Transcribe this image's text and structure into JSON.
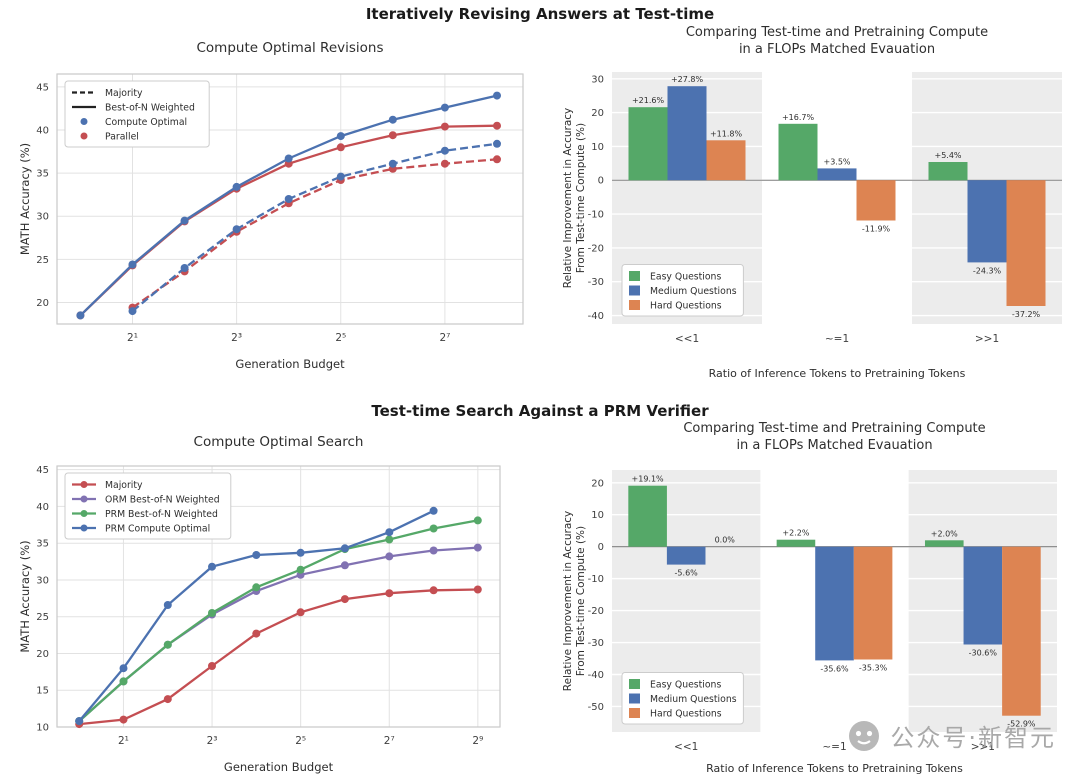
{
  "figure": {
    "suptitle_top": "Iteratively Revising Answers at Test-time",
    "suptitle_bottom": "Test-time Search Against a PRM Verifier"
  },
  "watermark": {
    "text": "公众号·新智元"
  },
  "colors": {
    "blue": "#4C72B0",
    "green": "#55A868",
    "red": "#C44E52",
    "orange": "#DD8452",
    "purple": "#8172B2",
    "black": "#222222"
  },
  "chart_data": [
    {
      "type": "line",
      "title": "Compute Optimal Revisions",
      "xlabel": "Generation Budget",
      "ylabel": "MATH Accuracy (%)",
      "x_scale": "log2",
      "xlim_log2": [
        -0.45,
        8.5
      ],
      "ylim": [
        17.5,
        46.5
      ],
      "y_ticks": [
        20,
        25,
        30,
        35,
        40,
        45
      ],
      "x_ticks": [
        2,
        8,
        32,
        128
      ],
      "x_tick_labels": [
        "2¹",
        "2³",
        "2⁵",
        "2⁷"
      ],
      "grid": true,
      "legend_position": "upper-left",
      "legend": [
        {
          "label": "Majority",
          "color": "black",
          "style": "dash"
        },
        {
          "label": "Best-of-N Weighted",
          "color": "black",
          "style": "line"
        },
        {
          "label": "Compute Optimal",
          "color": "blue",
          "style": "dot"
        },
        {
          "label": "Parallel",
          "color": "red",
          "style": "dot"
        }
      ],
      "series": [
        {
          "name": "Parallel Best-of-N Weighted",
          "color": "red",
          "dash": false,
          "x": [
            1,
            2,
            4,
            8,
            16,
            32,
            64,
            128,
            256
          ],
          "y": [
            18.5,
            24.3,
            29.4,
            33.2,
            36.1,
            38.0,
            39.4,
            40.4,
            40.5
          ]
        },
        {
          "name": "Compute Optimal Best-of-N Weighted",
          "color": "blue",
          "dash": false,
          "x": [
            1,
            2,
            4,
            8,
            16,
            32,
            64,
            128,
            256
          ],
          "y": [
            18.5,
            24.4,
            29.5,
            33.4,
            36.7,
            39.3,
            41.2,
            42.6,
            44.0
          ]
        },
        {
          "name": "Parallel Majority",
          "color": "red",
          "dash": true,
          "x": [
            2,
            4,
            8,
            16,
            32,
            64,
            128,
            256
          ],
          "y": [
            19.4,
            23.6,
            28.2,
            31.5,
            34.2,
            35.5,
            36.1,
            36.6
          ]
        },
        {
          "name": "Compute Optimal Majority",
          "color": "blue",
          "dash": true,
          "x": [
            2,
            4,
            8,
            16,
            32,
            64,
            128,
            256
          ],
          "y": [
            19.0,
            24.0,
            28.5,
            32.0,
            34.6,
            36.1,
            37.6,
            38.4
          ]
        }
      ]
    },
    {
      "type": "bar",
      "title": [
        "Comparing Test-time and Pretraining Compute",
        "in a FLOPs Matched Evauation"
      ],
      "xlabel": "Ratio of Inference Tokens to Pretraining Tokens",
      "ylabel": [
        "Relative Improvement in Accuracy",
        "From Test-time Compute (%)"
      ],
      "categories": [
        "<<1",
        "~=1",
        ">>1"
      ],
      "ylim": [
        -42.5,
        32
      ],
      "y_ticks": [
        30,
        20,
        10,
        0,
        -10,
        -20,
        -30,
        -40
      ],
      "band_color": "#ececec",
      "legend_position": "lower-left",
      "series": [
        {
          "name": "Easy Questions",
          "color": "green",
          "values": [
            21.6,
            16.7,
            5.4
          ]
        },
        {
          "name": "Medium Questions",
          "color": "blue",
          "values": [
            27.8,
            3.5,
            -24.3
          ]
        },
        {
          "name": "Hard Questions",
          "color": "orange",
          "values": [
            11.8,
            -11.9,
            -37.2
          ]
        }
      ]
    },
    {
      "type": "line",
      "title": "Compute Optimal Search",
      "xlabel": "Generation Budget",
      "ylabel": "MATH Accuracy (%)",
      "x_scale": "log2",
      "xlim_log2": [
        -0.5,
        9.5
      ],
      "ylim": [
        10,
        45.5
      ],
      "y_ticks": [
        10,
        15,
        20,
        25,
        30,
        35,
        40,
        45
      ],
      "x_ticks": [
        2,
        8,
        32,
        128,
        512
      ],
      "x_tick_labels": [
        "2¹",
        "2³",
        "2⁵",
        "2⁷",
        "2⁹"
      ],
      "grid": true,
      "legend_position": "upper-left",
      "legend": [
        {
          "label": "Majority",
          "color": "red",
          "style": "line-dot"
        },
        {
          "label": "ORM Best-of-N Weighted",
          "color": "purple",
          "style": "line-dot"
        },
        {
          "label": "PRM Best-of-N Weighted",
          "color": "green",
          "style": "line-dot"
        },
        {
          "label": "PRM Compute Optimal",
          "color": "blue",
          "style": "line-dot"
        }
      ],
      "series": [
        {
          "name": "Majority",
          "color": "red",
          "dash": false,
          "x": [
            1,
            2,
            4,
            8,
            16,
            32,
            64,
            128,
            256,
            512
          ],
          "y": [
            10.4,
            11.0,
            13.8,
            18.3,
            22.7,
            25.6,
            27.4,
            28.2,
            28.6,
            28.7
          ]
        },
        {
          "name": "ORM Best-of-N Weighted",
          "color": "purple",
          "dash": false,
          "x": [
            1,
            2,
            4,
            8,
            16,
            32,
            64,
            128,
            256,
            512
          ],
          "y": [
            10.8,
            16.2,
            21.2,
            25.3,
            28.5,
            30.7,
            32.0,
            33.2,
            34.0,
            34.4
          ]
        },
        {
          "name": "PRM Best-of-N Weighted",
          "color": "green",
          "dash": false,
          "x": [
            1,
            2,
            4,
            8,
            16,
            32,
            64,
            128,
            256,
            512
          ],
          "y": [
            10.8,
            16.2,
            21.2,
            25.5,
            29.0,
            31.4,
            34.2,
            35.5,
            37.0,
            38.1
          ]
        },
        {
          "name": "PRM Compute Optimal",
          "color": "blue",
          "dash": false,
          "x": [
            1,
            2,
            4,
            8,
            16,
            32,
            64,
            128,
            256
          ],
          "y": [
            10.8,
            18.0,
            26.6,
            31.8,
            33.4,
            33.7,
            34.3,
            36.5,
            39.4
          ]
        }
      ]
    },
    {
      "type": "bar",
      "title": [
        "Comparing Test-time and Pretraining Compute",
        "in a FLOPs Matched Evauation"
      ],
      "xlabel": "Ratio of Inference Tokens to Pretraining Tokens",
      "ylabel": [
        "Relative Improvement in Accuracy",
        "From Test-time Compute (%)"
      ],
      "categories": [
        "<<1",
        "~=1",
        ">>1"
      ],
      "ylim": [
        -58,
        24
      ],
      "y_ticks": [
        20,
        10,
        0,
        -10,
        -20,
        -30,
        -40,
        -50
      ],
      "band_color": "#ececec",
      "legend_position": "lower-left",
      "series": [
        {
          "name": "Easy Questions",
          "color": "green",
          "values": [
            19.1,
            2.2,
            2.0
          ]
        },
        {
          "name": "Medium Questions",
          "color": "blue",
          "values": [
            -5.6,
            -35.6,
            -30.6
          ]
        },
        {
          "name": "Hard Questions",
          "color": "orange",
          "values": [
            0.0,
            -35.3,
            -52.9
          ]
        }
      ]
    }
  ]
}
